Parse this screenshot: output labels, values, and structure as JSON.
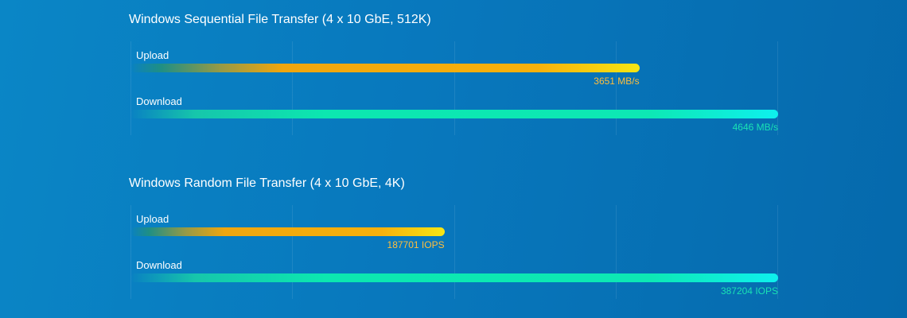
{
  "colors": {
    "upload": "#f7b10c",
    "download": "#0ce7b0",
    "upload_value_text": "#ffbe3c",
    "download_value_text": "#19e2b4"
  },
  "chart_data": [
    {
      "type": "bar",
      "orientation": "horizontal",
      "title": "Windows Sequential File Transfer (4 x 10 GbE, 512K)",
      "categories": [
        "Upload",
        "Download"
      ],
      "values": [
        3651,
        4646
      ],
      "value_labels": [
        "3651 MB/s",
        "4646 MB/s"
      ],
      "xlim": [
        0,
        4646
      ],
      "grid": true,
      "legend": "none"
    },
    {
      "type": "bar",
      "orientation": "horizontal",
      "title": "Windows Random File Transfer (4 x 10 GbE, 4K)",
      "categories": [
        "Upload",
        "Download"
      ],
      "values": [
        187701,
        387204
      ],
      "value_labels": [
        "187701 IOPS",
        "387204 IOPS"
      ],
      "xlim": [
        0,
        387204
      ],
      "grid": true,
      "legend": "none"
    }
  ]
}
